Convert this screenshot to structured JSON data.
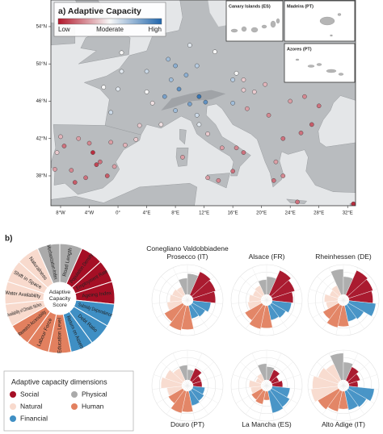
{
  "map": {
    "title": "a) Adaptive Capacity",
    "colorbar_labels": [
      "Low",
      "Moderate",
      "High"
    ],
    "colors": [
      "#b2182b",
      "#f7f7f7",
      "#2166ac"
    ],
    "clim": [
      0,
      1
    ],
    "xlim": [
      -9.35,
      33.1
    ],
    "ylim": [
      34.8,
      56.85
    ],
    "xticks": [
      {
        "value": -8,
        "label": "8°W"
      },
      {
        "value": -4,
        "label": "4°W"
      },
      {
        "value": 0,
        "label": "0°"
      },
      {
        "value": 4,
        "label": "4°E"
      },
      {
        "value": 8,
        "label": "8°E"
      },
      {
        "value": 12,
        "label": "12°E"
      },
      {
        "value": 16,
        "label": "16°E"
      },
      {
        "value": 20,
        "label": "20°E"
      },
      {
        "value": 24,
        "label": "24°E"
      },
      {
        "value": 28,
        "label": "28°E"
      },
      {
        "value": 32,
        "label": "32°E"
      }
    ],
    "yticks": [
      {
        "value": 38,
        "label": "38°N"
      },
      {
        "value": 42,
        "label": "42°N"
      },
      {
        "value": 46,
        "label": "46°N"
      },
      {
        "value": 50,
        "label": "50°N"
      },
      {
        "value": 54,
        "label": "54°N"
      }
    ],
    "insets": [
      "Canary Islands (ES)",
      "Madeira (PT)",
      "Azores (PT)"
    ],
    "points": {
      "lon": [
        -6,
        -4.5,
        -3,
        -2.5,
        -4,
        -5.5,
        -3.5,
        -1,
        1,
        2.5,
        -8,
        -7.5,
        -8.5,
        -8.8,
        -6.5,
        -1.5,
        -0.5,
        -1,
        0,
        4,
        4.8,
        3,
        6,
        7.4,
        4,
        0.5,
        -2,
        8,
        7,
        9.5,
        11,
        13.5,
        10,
        11.3,
        12.2,
        10,
        8,
        11,
        11.3,
        12.5,
        14.5,
        16.5,
        17.5,
        16,
        14,
        12.5,
        9,
        16,
        17.5,
        19,
        20.5,
        16,
        18,
        21,
        23,
        25.5,
        27,
        28,
        26,
        24,
        22,
        23,
        21.7,
        25,
        32.8,
        6.5,
        8.5,
        0.5,
        16.5,
        17.5
      ],
      "lat": [
        37.3,
        37.8,
        39.2,
        39.5,
        41.5,
        42,
        40.5,
        41.6,
        41.3,
        41.9,
        42.2,
        41.2,
        40.5,
        38.7,
        38.6,
        38,
        39,
        44.8,
        47.3,
        47,
        45.8,
        43.4,
        43.5,
        48.3,
        49.2,
        49.2,
        47.5,
        49.8,
        50.5,
        48.8,
        49.8,
        51.3,
        52,
        46.5,
        45.9,
        45.7,
        45,
        44.5,
        43.5,
        42.5,
        41,
        41,
        40.5,
        38.5,
        37.5,
        37.8,
        40,
        48.3,
        47.2,
        47,
        47.8,
        45.8,
        45.2,
        44.5,
        42,
        42.6,
        43.5,
        45.5,
        46.5,
        46,
        39.5,
        38,
        37.5,
        35.2,
        35,
        46.5,
        47.3,
        51.2,
        49,
        48.3
      ],
      "values": [
        0.15,
        0.2,
        0.1,
        0.2,
        0.25,
        0.3,
        0.05,
        0.3,
        0.35,
        0.4,
        0.35,
        0.2,
        0.4,
        0.3,
        0.25,
        0.15,
        0.3,
        0.6,
        0.55,
        0.5,
        0.45,
        0.4,
        0.45,
        0.7,
        0.6,
        0.55,
        0.5,
        0.75,
        0.7,
        0.75,
        0.65,
        0.5,
        0.55,
        0.95,
        0.85,
        0.8,
        0.7,
        0.6,
        0.55,
        0.4,
        0.3,
        0.25,
        0.2,
        0.2,
        0.25,
        0.3,
        0.3,
        0.65,
        0.4,
        0.4,
        0.35,
        0.7,
        0.3,
        0.25,
        0.2,
        0.2,
        0.15,
        0.2,
        0.25,
        0.3,
        0.3,
        0.25,
        0.2,
        0.2,
        0.05,
        0.8,
        0.85,
        0.5,
        0.5,
        0.4
      ]
    }
  },
  "wheel": {
    "panel_label": "b)",
    "center_label_lines": [
      "Adaptive",
      "Capacity",
      "Score"
    ],
    "indicators": [
      {
        "name": "Mechanization Index",
        "dimension": "Physical"
      },
      {
        "name": "Road Length",
        "dimension": "Physical"
      },
      {
        "name": "Population Density",
        "dimension": "Social"
      },
      {
        "name": "Employment Rate",
        "dimension": "Social"
      },
      {
        "name": "Ageing Index",
        "dimension": "Social"
      },
      {
        "name": "Subsidy Dependence",
        "dimension": "Financial"
      },
      {
        "name": "Debt Ratio",
        "dimension": "Financial"
      },
      {
        "name": "Return on Assets",
        "dimension": "Financial"
      },
      {
        "name": "Education Level",
        "dimension": "Human"
      },
      {
        "name": "Labour Force",
        "dimension": "Human"
      },
      {
        "name": "Research Accessibility",
        "dimension": "Human"
      },
      {
        "name": "Availability of Climatic Niches",
        "dimension": "Natural"
      },
      {
        "name": "Water Availability",
        "dimension": "Natural"
      },
      {
        "name": "Shift in Space",
        "dimension": "Natural"
      },
      {
        "name": "Naturalness",
        "dimension": "Natural"
      }
    ]
  },
  "legend_title": "Adaptive capacity dimensions",
  "dimensions": [
    {
      "name": "Social",
      "color": "#a50f25"
    },
    {
      "name": "Physical",
      "color": "#aaaaaa"
    },
    {
      "name": "Natural",
      "color": "#f8dacd"
    },
    {
      "name": "Human",
      "color": "#e2805f"
    },
    {
      "name": "Financial",
      "color": "#3f8fc4"
    }
  ],
  "rlim": [
    0,
    1
  ],
  "regions": [
    {
      "name": "Conegliano Valdobbiadene Prosecco (IT)",
      "values": [
        0.55,
        0.7,
        0.85,
        0.8,
        0.75,
        0.6,
        0.5,
        0.45,
        0.8,
        0.85,
        0.7,
        0.5,
        0.4,
        0.35,
        0.3
      ]
    },
    {
      "name": "Alsace (FR)",
      "values": [
        0.5,
        0.6,
        0.9,
        0.8,
        0.7,
        0.65,
        0.55,
        0.5,
        0.75,
        0.8,
        0.65,
        0.45,
        0.4,
        0.3,
        0.35
      ]
    },
    {
      "name": "Rheinhessen (DE)",
      "values": [
        0.85,
        0.6,
        0.9,
        0.85,
        0.8,
        0.9,
        0.6,
        0.55,
        0.7,
        0.75,
        0.6,
        0.4,
        0.45,
        0.3,
        0.35
      ]
    },
    {
      "name": "Douro (PT)",
      "values": [
        0.5,
        0.35,
        0.45,
        0.3,
        0.3,
        0.4,
        0.45,
        0.5,
        0.7,
        0.75,
        0.55,
        0.5,
        0.7,
        0.6,
        0.45
      ]
    },
    {
      "name": "La Mancha (ES)",
      "values": [
        0.55,
        0.45,
        0.4,
        0.25,
        0.35,
        0.6,
        0.7,
        0.75,
        0.3,
        0.45,
        0.4,
        0.35,
        0.4,
        0.2,
        0.25
      ]
    },
    {
      "name": "Alto Adige (IT)",
      "values": [
        0.9,
        0.6,
        0.5,
        0.4,
        0.3,
        0.85,
        0.7,
        0.65,
        0.6,
        0.7,
        0.8,
        0.9,
        0.85,
        0.7,
        0.6
      ]
    }
  ]
}
